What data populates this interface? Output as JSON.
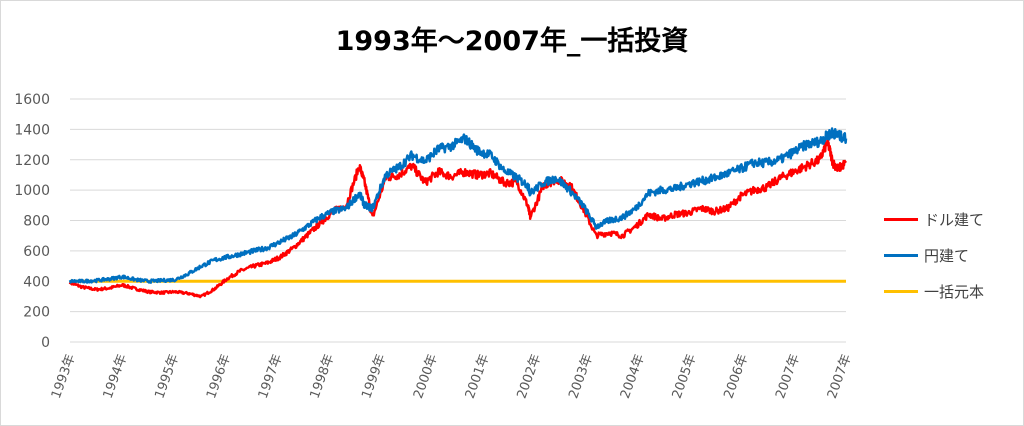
{
  "chart_data": {
    "type": "line",
    "title": "1993年～2007年_一括投資",
    "xlabel": "",
    "ylabel": "",
    "ylim": [
      0,
      1600
    ],
    "yticks": [
      0,
      200,
      400,
      600,
      800,
      1000,
      1200,
      1400,
      1600
    ],
    "x_tick_labels": [
      "1993年",
      "1994年",
      "1995年",
      "1996年",
      "1997年",
      "1998年",
      "1999年",
      "2000年",
      "2001年",
      "2002年",
      "2003年",
      "2004年",
      "2005年",
      "2006年",
      "2007年",
      "2007年"
    ],
    "grid": "horizontal",
    "legend_position": "right",
    "x": [
      1993.0,
      1993.25,
      1993.5,
      1993.75,
      1994.0,
      1994.25,
      1994.5,
      1994.75,
      1995.0,
      1995.25,
      1995.5,
      1995.75,
      1996.0,
      1996.25,
      1996.5,
      1996.75,
      1997.0,
      1997.25,
      1997.5,
      1997.75,
      1998.0,
      1998.25,
      1998.5,
      1998.6,
      1998.75,
      1999.0,
      1999.25,
      1999.5,
      1999.75,
      2000.0,
      2000.25,
      2000.5,
      2000.75,
      2001.0,
      2001.25,
      2001.5,
      2001.7,
      2001.75,
      2002.0,
      2002.25,
      2002.5,
      2002.75,
      2003.0,
      2003.25,
      2003.5,
      2003.75,
      2004.0,
      2004.25,
      2004.5,
      2004.75,
      2005.0,
      2005.25,
      2005.5,
      2005.75,
      2006.0,
      2006.25,
      2006.5,
      2006.75,
      2007.0,
      2007.25,
      2007.4,
      2007.5,
      2007.6,
      2007.75
    ],
    "series": [
      {
        "name": "ドル建て",
        "color": "#ff0000",
        "values": [
          390,
          360,
          345,
          355,
          375,
          350,
          330,
          325,
          330,
          320,
          300,
          350,
          420,
          470,
          500,
          520,
          560,
          620,
          700,
          780,
          860,
          900,
          1160,
          1050,
          820,
          1080,
          1100,
          1160,
          1050,
          1120,
          1090,
          1120,
          1100,
          1110,
          1050,
          1050,
          900,
          820,
          1030,
          1070,
          1040,
          880,
          700,
          720,
          700,
          760,
          840,
          810,
          840,
          850,
          880,
          860,
          880,
          960,
          1000,
          1020,
          1080,
          1120,
          1160,
          1200,
          1320,
          1180,
          1140,
          1180
        ]
      },
      {
        "name": "円建て",
        "color": "#0070c0",
        "values": [
          400,
          400,
          405,
          415,
          430,
          410,
          400,
          405,
          410,
          450,
          500,
          540,
          560,
          580,
          600,
          620,
          660,
          700,
          760,
          820,
          860,
          880,
          980,
          900,
          880,
          1100,
          1150,
          1230,
          1190,
          1270,
          1290,
          1340,
          1260,
          1230,
          1130,
          1080,
          1030,
          980,
          1050,
          1080,
          1000,
          900,
          760,
          800,
          820,
          880,
          980,
          1000,
          1010,
          1040,
          1060,
          1080,
          1110,
          1140,
          1180,
          1180,
          1200,
          1250,
          1300,
          1320,
          1360,
          1380,
          1360,
          1340
        ]
      },
      {
        "name": "一括元本",
        "color": "#ffc000",
        "values": [
          400,
          400,
          400,
          400,
          400,
          400,
          400,
          400,
          400,
          400,
          400,
          400,
          400,
          400,
          400,
          400,
          400,
          400,
          400,
          400,
          400,
          400,
          400,
          400,
          400,
          400,
          400,
          400,
          400,
          400,
          400,
          400,
          400,
          400,
          400,
          400,
          400,
          400,
          400,
          400,
          400,
          400,
          400,
          400,
          400,
          400,
          400,
          400,
          400,
          400,
          400,
          400,
          400,
          400,
          400,
          400,
          400,
          400,
          400,
          400,
          400,
          400,
          400,
          400
        ]
      }
    ]
  }
}
